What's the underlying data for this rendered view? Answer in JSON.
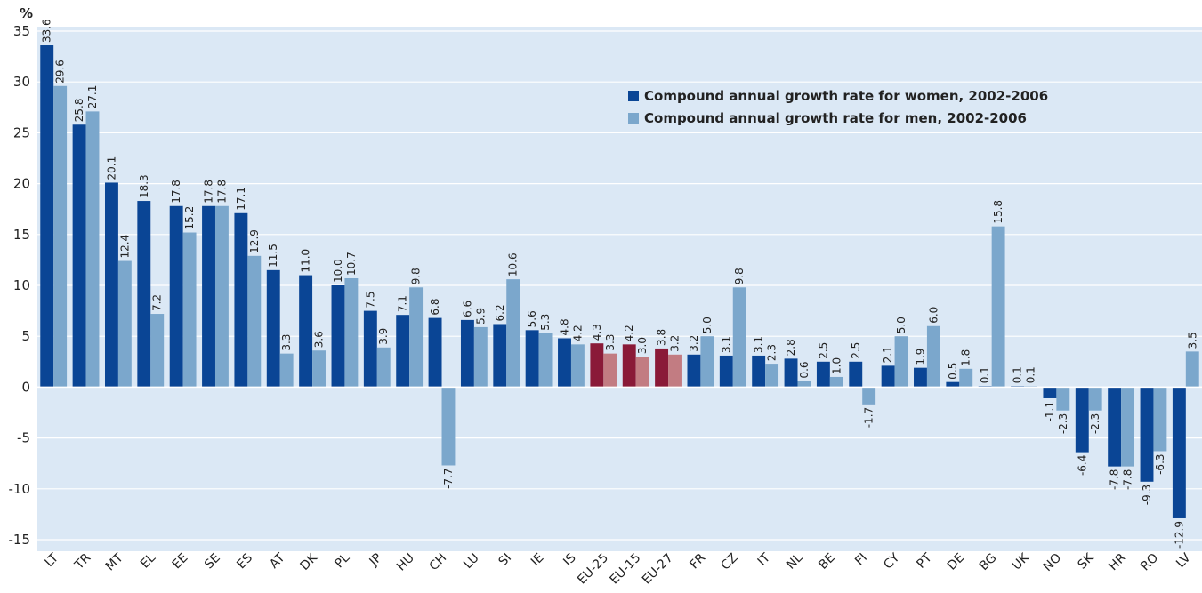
{
  "chart_data": {
    "type": "bar",
    "y_axis_label": "%",
    "categories": [
      "LT",
      "TR",
      "MT",
      "EL",
      "EE",
      "SE",
      "ES",
      "AT",
      "DK",
      "PL",
      "JP",
      "HU",
      "CH",
      "LU",
      "SI",
      "IE",
      "IS",
      "EU-25",
      "EU-15",
      "EU-27",
      "FR",
      "CZ",
      "IT",
      "NL",
      "BE",
      "FI",
      "CY",
      "PT",
      "DE",
      "BG",
      "UK",
      "NO",
      "SK",
      "HR",
      "RO",
      "LV"
    ],
    "series": [
      {
        "name": "Compound annual growth rate for women, 2002-2006",
        "color": "#0a4595",
        "colors": [
          "#0a4595",
          "#0a4595",
          "#0a4595",
          "#0a4595",
          "#0a4595",
          "#0a4595",
          "#0a4595",
          "#0a4595",
          "#0a4595",
          "#0a4595",
          "#0a4595",
          "#0a4595",
          "#0a4595",
          "#0a4595",
          "#0a4595",
          "#0a4595",
          "#0a4595",
          "#8a1a38",
          "#8a1a38",
          "#8a1a38",
          "#0a4595",
          "#0a4595",
          "#0a4595",
          "#0a4595",
          "#0a4595",
          "#0a4595",
          "#0a4595",
          "#0a4595",
          "#0a4595",
          "#0a4595",
          "#0a4595",
          "#0a4595",
          "#0a4595",
          "#0a4595",
          "#0a4595",
          "#0a4595"
        ],
        "values": [
          33.6,
          25.8,
          20.1,
          18.3,
          17.8,
          17.8,
          17.1,
          11.5,
          11.0,
          10.0,
          7.5,
          7.1,
          6.8,
          6.6,
          6.2,
          5.6,
          4.8,
          4.3,
          4.2,
          3.8,
          3.2,
          3.1,
          3.1,
          2.8,
          2.5,
          2.5,
          2.1,
          1.9,
          0.5,
          0.1,
          0.1,
          -1.1,
          -6.4,
          -7.8,
          -9.3,
          -12.9
        ],
        "value_labels": [
          "33.6",
          "25.8",
          "20.1",
          "18.3",
          "17.8",
          "17.8",
          "17.1",
          "11.5",
          "11.0",
          "10.0",
          "7.5",
          "7.1",
          "6.8",
          "6.6",
          "6.2",
          "5.6",
          "4.8",
          "4.3",
          "4.2",
          "3.8",
          "3.2",
          "3.1",
          "3.1",
          "2.8",
          "2.5",
          "2.5",
          "2.1",
          "1.9",
          "0.5",
          "0.1",
          "0.1",
          "-1.1",
          "-6.4",
          "-7.8",
          "-9.3",
          "-12.9"
        ]
      },
      {
        "name": "Compound annual growth rate for men, 2002-2006",
        "color": "#7ba7cc",
        "colors": [
          "#7ba7cc",
          "#7ba7cc",
          "#7ba7cc",
          "#7ba7cc",
          "#7ba7cc",
          "#7ba7cc",
          "#7ba7cc",
          "#7ba7cc",
          "#7ba7cc",
          "#7ba7cc",
          "#7ba7cc",
          "#7ba7cc",
          "#7ba7cc",
          "#7ba7cc",
          "#7ba7cc",
          "#7ba7cc",
          "#7ba7cc",
          "#c27c82",
          "#c27c82",
          "#c27c82",
          "#7ba7cc",
          "#7ba7cc",
          "#7ba7cc",
          "#7ba7cc",
          "#7ba7cc",
          "#7ba7cc",
          "#7ba7cc",
          "#7ba7cc",
          "#7ba7cc",
          "#7ba7cc",
          "#7ba7cc",
          "#7ba7cc",
          "#7ba7cc",
          "#7ba7cc",
          "#7ba7cc",
          "#7ba7cc"
        ],
        "values": [
          29.6,
          27.1,
          12.4,
          7.2,
          15.2,
          17.8,
          12.9,
          3.3,
          3.6,
          10.7,
          3.9,
          9.8,
          -7.7,
          5.9,
          10.6,
          5.3,
          4.2,
          3.3,
          3.0,
          3.2,
          5.0,
          9.8,
          2.3,
          0.6,
          1.0,
          -1.7,
          5.0,
          6.0,
          1.8,
          15.8,
          0.1,
          -2.3,
          -2.3,
          -7.8,
          -6.3,
          3.5
        ],
        "value_labels": [
          "29.6",
          "27.1",
          "12.4",
          "7.2",
          "15.2",
          "17.8",
          "12.9",
          "3.3",
          "3.6",
          "10.7",
          "3.9",
          "9.8",
          "-7.7",
          "5.9",
          "10.6",
          "5.3",
          "4.2",
          "3.3",
          "3.0",
          "3.2",
          "5.0",
          "9.8",
          "2.3",
          "0.6",
          "1.0",
          "-1.7",
          "5.0",
          "6.0",
          "1.8",
          "15.8",
          "0.1",
          "-2.3",
          "-2.3",
          "-7.8",
          "-6.3",
          "3.5"
        ]
      }
    ],
    "ylim": [
      -15,
      35
    ],
    "yticks": [
      -15,
      -10,
      -5,
      0,
      5,
      10,
      15,
      20,
      25,
      30,
      35
    ],
    "grid": true,
    "legend": "upper right"
  }
}
